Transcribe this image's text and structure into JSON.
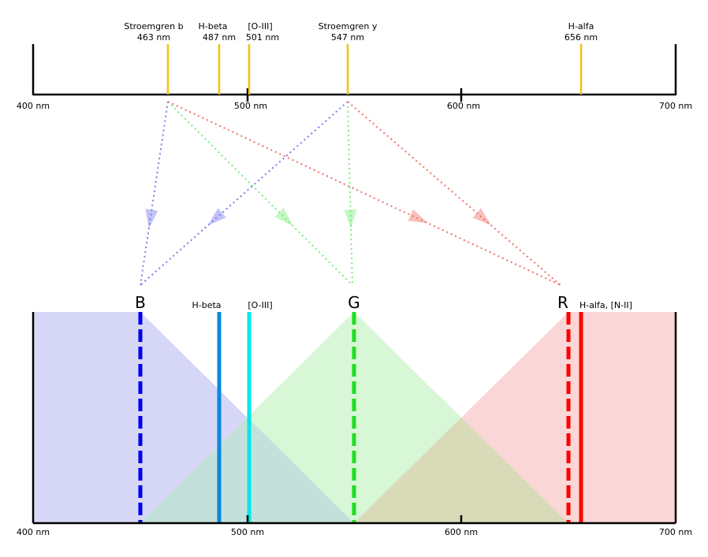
{
  "top_scale": {
    "tick_labels": [
      "400 nm",
      "500 nm",
      "600 nm",
      "700 nm"
    ],
    "lines": [
      {
        "name": "Stroemgren b",
        "wavelength": "463 nm",
        "nm": 463
      },
      {
        "name": "H-beta",
        "wavelength": "487 nm",
        "nm": 487
      },
      {
        "name": "[O-III]",
        "wavelength": "501 nm",
        "nm": 501
      },
      {
        "name": "Stroemgren y",
        "wavelength": "547 nm",
        "nm": 547
      },
      {
        "name": "H-alfa",
        "wavelength": "656 nm",
        "nm": 656
      }
    ],
    "line_color": "#f5c000"
  },
  "channels": [
    {
      "letter": "B",
      "nm": 450,
      "color": "#0000ee",
      "fill": "#d6d6f7",
      "arrow": "#7a7aee"
    },
    {
      "letter": "G",
      "nm": 550,
      "color": "#22dd22",
      "fill": "#d7f7d7",
      "arrow": "#77ee77"
    },
    {
      "letter": "R",
      "nm": 650,
      "color": "#ff0000",
      "fill": "#fbd6d6",
      "arrow": "#f0706a"
    }
  ],
  "bottom_scale": {
    "tick_labels": [
      "400 nm",
      "500 nm",
      "600 nm",
      "700 nm"
    ],
    "lines": [
      {
        "label": "H-beta",
        "nm": 487,
        "color": "#0a87e0"
      },
      {
        "label": "[O-III]",
        "nm": 501,
        "color": "#00e8e8"
      },
      {
        "label": "H-alfa, [N-II]",
        "nm": 656,
        "color": "#ff0000"
      }
    ],
    "overlap_bg": "#c3e0da",
    "overlap_gr": "#d9dab8"
  },
  "mapping": [
    {
      "from": "Stroemgren b",
      "to": [
        "B",
        "G",
        "R"
      ]
    },
    {
      "from": "Stroemgren y",
      "to": [
        "B",
        "G",
        "R"
      ]
    }
  ]
}
